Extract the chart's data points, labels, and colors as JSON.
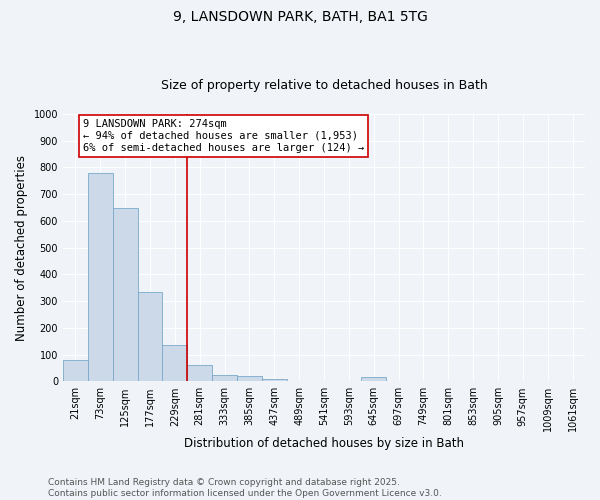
{
  "title_line1": "9, LANSDOWN PARK, BATH, BA1 5TG",
  "title_line2": "Size of property relative to detached houses in Bath",
  "xlabel": "Distribution of detached houses by size in Bath",
  "ylabel": "Number of detached properties",
  "categories": [
    "21sqm",
    "73sqm",
    "125sqm",
    "177sqm",
    "229sqm",
    "281sqm",
    "333sqm",
    "385sqm",
    "437sqm",
    "489sqm",
    "541sqm",
    "593sqm",
    "645sqm",
    "697sqm",
    "749sqm",
    "801sqm",
    "853sqm",
    "905sqm",
    "957sqm",
    "1009sqm",
    "1061sqm"
  ],
  "values": [
    80,
    780,
    648,
    335,
    135,
    60,
    25,
    20,
    10,
    0,
    0,
    0,
    15,
    0,
    0,
    0,
    0,
    0,
    0,
    0,
    0
  ],
  "bar_color": "#ccd9e8",
  "bar_edge_color": "#7aa8cc",
  "vline_color": "#cc0000",
  "vline_pos": 5,
  "annotation_text_line1": "9 LANSDOWN PARK: 274sqm",
  "annotation_text_line2": "← 94% of detached houses are smaller (1,953)",
  "annotation_text_line3": "6% of semi-detached houses are larger (124) →",
  "annotation_box_facecolor": "#ffffff",
  "annotation_box_edgecolor": "#cc0000",
  "ylim": [
    0,
    1000
  ],
  "yticks": [
    0,
    100,
    200,
    300,
    400,
    500,
    600,
    700,
    800,
    900,
    1000
  ],
  "bg_color": "#f0f4f8",
  "plot_bg_color": "#f0f4f8",
  "grid_color": "#ffffff",
  "footer_line1": "Contains HM Land Registry data © Crown copyright and database right 2025.",
  "footer_line2": "Contains public sector information licensed under the Open Government Licence v3.0.",
  "title_fontsize": 10,
  "subtitle_fontsize": 9,
  "tick_fontsize": 7,
  "label_fontsize": 8.5,
  "footer_fontsize": 6.5,
  "annotation_fontsize": 7.5
}
